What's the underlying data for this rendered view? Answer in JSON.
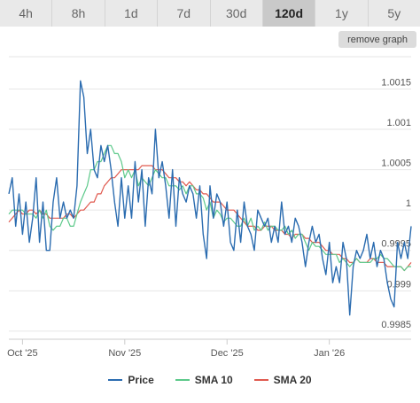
{
  "tabs": [
    {
      "label": "4h",
      "active": false
    },
    {
      "label": "8h",
      "active": false
    },
    {
      "label": "1d",
      "active": false
    },
    {
      "label": "7d",
      "active": false
    },
    {
      "label": "30d",
      "active": false
    },
    {
      "label": "120d",
      "active": true
    },
    {
      "label": "1y",
      "active": false
    },
    {
      "label": "5y",
      "active": false
    }
  ],
  "remove_graph_label": "remove graph",
  "chart_data": {
    "type": "line",
    "x_tick_labels": [
      "Oct '25",
      "Nov '25",
      "Dec '25",
      "Jan '26"
    ],
    "x_tick_positions": [
      4,
      34,
      64,
      94
    ],
    "y_tick_labels": [
      "1.0015",
      "1.001",
      "1.0005",
      "1",
      "0.9995",
      "0.999",
      "0.9985"
    ],
    "y_ticks": [
      1.0015,
      1.001,
      1.0005,
      1.0,
      0.9995,
      0.999,
      0.9985
    ],
    "ylim": [
      0.9984,
      1.0019
    ],
    "x_range": [
      0,
      118
    ],
    "grid": true,
    "legend_position": "bottom",
    "series": [
      {
        "name": "Price",
        "color": "#2b6cb0",
        "values": [
          1.0002,
          1.0004,
          0.9998,
          1.0002,
          0.9997,
          1.0001,
          0.9996,
          0.9999,
          1.0004,
          0.9996,
          1.0001,
          0.9995,
          0.9995,
          1.0001,
          1.0004,
          0.9999,
          1.0001,
          0.9999,
          1.0,
          0.9999,
          1.0003,
          1.0016,
          1.0014,
          1.0007,
          1.001,
          1.0005,
          1.0004,
          1.0008,
          1.0006,
          1.0008,
          1.0005,
          1.0001,
          0.9998,
          1.0004,
          0.9999,
          1.0003,
          0.9999,
          1.0006,
          1.0001,
          1.0005,
          0.9998,
          1.0004,
          1.0002,
          1.001,
          1.0004,
          1.0006,
          1.0003,
          0.9999,
          1.0005,
          0.9998,
          1.0004,
          1.0002,
          1.0001,
          1.0003,
          1.0002,
          0.9999,
          1.0003,
          0.9997,
          0.9994,
          1.0003,
          0.9999,
          1.0002,
          1.0001,
          0.9998,
          1.0001,
          0.9996,
          0.9995,
          1.0,
          0.9996,
          1.0001,
          0.9998,
          0.9997,
          0.9995,
          1.0,
          0.9999,
          0.9998,
          0.9999,
          0.9996,
          0.9998,
          0.9996,
          1.0001,
          0.9997,
          0.9998,
          0.9996,
          0.9999,
          0.9998,
          0.9996,
          0.9993,
          0.9996,
          0.9998,
          0.9996,
          0.9997,
          0.9994,
          0.9992,
          0.9996,
          0.9991,
          0.9993,
          0.9991,
          0.9996,
          0.9994,
          0.9987,
          0.9993,
          0.9995,
          0.9994,
          0.9995,
          0.9997,
          0.9994,
          0.9996,
          0.9993,
          0.9995,
          0.9994,
          0.9991,
          0.9989,
          0.9988,
          0.9996,
          0.9994,
          0.9996,
          0.9994,
          0.9998
        ]
      },
      {
        "name": "SMA 10",
        "color": "#5cc98a",
        "values": [
          0.99995,
          1.0,
          1.0,
          1.0,
          1.0,
          0.99995,
          0.99995,
          0.99995,
          0.9999,
          1.0,
          0.9999,
          1.0,
          0.9998,
          0.99975,
          0.9998,
          0.9998,
          0.9999,
          0.9999,
          0.9998,
          0.9998,
          0.99995,
          1.0001,
          1.0002,
          1.0003,
          1.0005,
          1.0005,
          1.0006,
          1.0006,
          1.0007,
          1.0008,
          1.0008,
          1.0007,
          1.0007,
          1.0006,
          1.0004,
          1.0005,
          1.0004,
          1.0005,
          1.0003,
          1.0004,
          1.00035,
          1.0003,
          1.0004,
          1.0005,
          1.00045,
          1.0004,
          1.0004,
          1.0003,
          1.0003,
          1.0003,
          1.00025,
          1.0003,
          1.0002,
          1.0003,
          1.0003,
          1.0002,
          1.0002,
          1.00015,
          1.0,
          1.0001,
          0.9999,
          1.0,
          0.99995,
          0.99985,
          0.9999,
          0.9999,
          0.99985,
          0.9998,
          0.9998,
          0.9999,
          0.9998,
          0.9999,
          0.99975,
          0.9998,
          0.99975,
          0.99985,
          0.99975,
          0.9998,
          0.9998,
          0.99975,
          0.99975,
          0.9998,
          0.9997,
          0.99975,
          0.99965,
          0.9997,
          0.9997,
          0.9996,
          0.9995,
          0.9996,
          0.99955,
          0.99955,
          0.9995,
          0.99945,
          0.99945,
          0.99945,
          0.99945,
          0.99935,
          0.9994,
          0.99935,
          0.9993,
          0.99935,
          0.9994,
          0.99935,
          0.99935,
          0.99935,
          0.99935,
          0.9994,
          0.9994,
          0.99945,
          0.9994,
          0.9994,
          0.99935,
          0.9993,
          0.9993,
          0.9993,
          0.99925,
          0.9993,
          0.9993
        ]
      },
      {
        "name": "SMA 20",
        "color": "#e05a4f",
        "values": [
          0.99985,
          0.9999,
          0.99995,
          1.0,
          0.99995,
          0.99995,
          1.0,
          1.0,
          0.99995,
          1.0,
          0.99995,
          0.99995,
          0.9999,
          0.9999,
          0.9999,
          0.9999,
          0.9999,
          0.99995,
          0.99995,
          0.9999,
          0.99995,
          1.0,
          1.0,
          1.00005,
          1.0001,
          1.0001,
          1.0002,
          1.0002,
          1.0003,
          1.00035,
          1.0004,
          1.0004,
          1.00045,
          1.0005,
          1.0005,
          1.0005,
          1.0005,
          1.0005,
          1.0005,
          1.00055,
          1.00055,
          1.00055,
          1.00055,
          1.0005,
          1.0005,
          1.0005,
          1.00045,
          1.0004,
          1.0004,
          1.0004,
          1.00035,
          1.00035,
          1.0003,
          1.00035,
          1.0003,
          1.00025,
          1.00025,
          1.0002,
          1.0002,
          1.00015,
          1.0001,
          1.0001,
          1.0001,
          1.00005,
          1.0,
          1.0,
          1.0,
          0.99995,
          0.9999,
          0.99985,
          0.9998,
          0.9998,
          0.9998,
          0.99975,
          0.99975,
          0.9998,
          0.9998,
          0.9998,
          0.99975,
          0.99975,
          0.99975,
          0.9997,
          0.9997,
          0.99965,
          0.9997,
          0.9997,
          0.9997,
          0.99965,
          0.99965,
          0.9996,
          0.9996,
          0.9996,
          0.99955,
          0.9995,
          0.9995,
          0.99945,
          0.99945,
          0.99945,
          0.9994,
          0.9994,
          0.99935,
          0.99935,
          0.9994,
          0.99935,
          0.99935,
          0.99935,
          0.9994,
          0.9994,
          0.99935,
          0.99935,
          0.99935,
          0.9993,
          0.9993,
          0.9993,
          0.9993,
          0.9993,
          0.99925,
          0.9993,
          0.99935
        ]
      }
    ]
  }
}
